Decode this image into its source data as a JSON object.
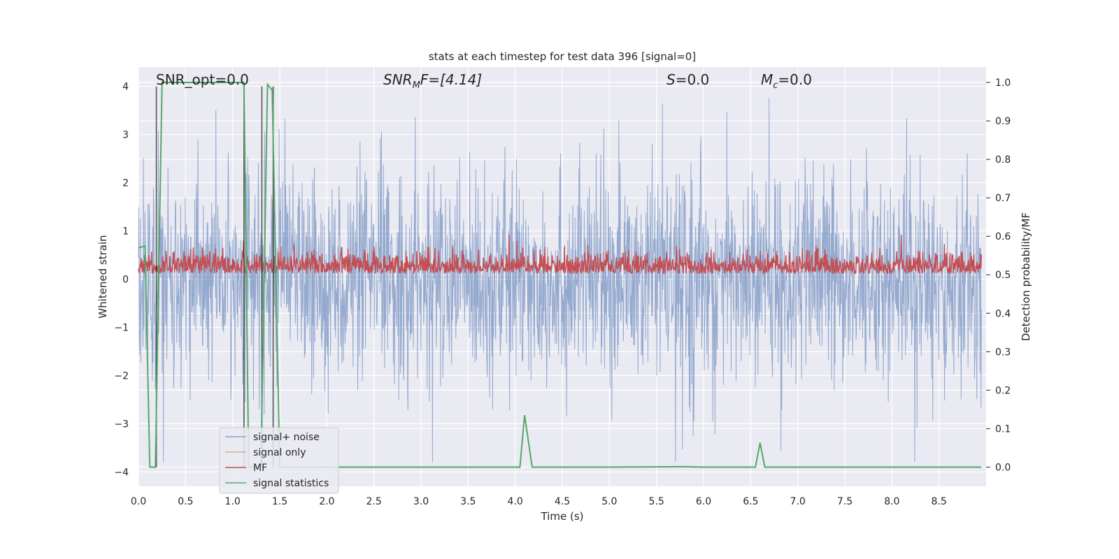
{
  "chart_data": {
    "type": "line",
    "title": "stats at each timestep for test data 396 [signal=0]",
    "xlabel": "Time (s)",
    "ylabel": "Whitened strain",
    "ylabel_right": "Detection probability/MF",
    "xlim": [
      0.0,
      9.0
    ],
    "ylim": [
      -4.3,
      4.4
    ],
    "ylim_right": [
      -0.05,
      1.04
    ],
    "x_ticks": [
      "0.0",
      "0.5",
      "1.0",
      "1.5",
      "2.0",
      "2.5",
      "3.0",
      "3.5",
      "4.0",
      "4.5",
      "5.0",
      "5.5",
      "6.0",
      "6.5",
      "7.0",
      "7.5",
      "8.0",
      "8.5"
    ],
    "y_ticks": [
      "4",
      "3",
      "2",
      "1",
      "0",
      "−1",
      "−2",
      "−3",
      "−4"
    ],
    "y_ticks_right": [
      "1.0",
      "0.9",
      "0.8",
      "0.7",
      "0.6",
      "0.5",
      "0.4",
      "0.3",
      "0.2",
      "0.1",
      "0.0"
    ],
    "grid": true,
    "legend_placement": "lower-left",
    "annotations": {
      "snr_opt": "SNR_opt=0.0",
      "snr_mf_main": "SNR",
      "snr_mf_sub": "M",
      "snr_mf_tail": "F=[4.14]",
      "s_main": "S",
      "s_tail": "=0.0",
      "mc_main": "M",
      "mc_sub": "c",
      "mc_tail": "=0.0"
    },
    "series": [
      {
        "name": "signal+ noise",
        "color": "#4c72b0",
        "axis": "left",
        "description": "whitened strain noise, amplitude about ±2.5 with spikes to ±3.8"
      },
      {
        "name": "signal only",
        "color": "#dd8452",
        "axis": "left",
        "values": []
      },
      {
        "name": "MF",
        "color": "#c44e52",
        "axis": "right",
        "description": "matched filter, range about 0.5 to 0.6"
      },
      {
        "name": "signal statistics",
        "color": "#55a868",
        "axis": "right",
        "x": [
          0.0,
          0.07,
          0.12,
          0.18,
          0.25,
          0.3,
          0.6,
          1.0,
          1.12,
          1.17,
          1.22,
          1.3,
          1.37,
          1.42,
          1.5,
          2.0,
          3.0,
          4.05,
          4.1,
          4.18,
          4.2,
          5.0,
          5.8,
          6.0,
          6.55,
          6.6,
          6.65,
          6.7,
          7.5,
          8.0,
          8.95
        ],
        "values": [
          0.57,
          0.575,
          0.0,
          0.0,
          1.0,
          1.0,
          1.0,
          1.0,
          1.0,
          0.0,
          0.0,
          0.0,
          0.995,
          0.98,
          0.0,
          0.0,
          0.0,
          0.0,
          0.135,
          0.0,
          0.0,
          0.0,
          0.001,
          0.0,
          0.0,
          0.063,
          0.0,
          0.0,
          0.0,
          0.0,
          0.0
        ]
      }
    ],
    "vertical_lines": [
      0.19,
      1.12,
      1.31,
      1.43
    ]
  }
}
